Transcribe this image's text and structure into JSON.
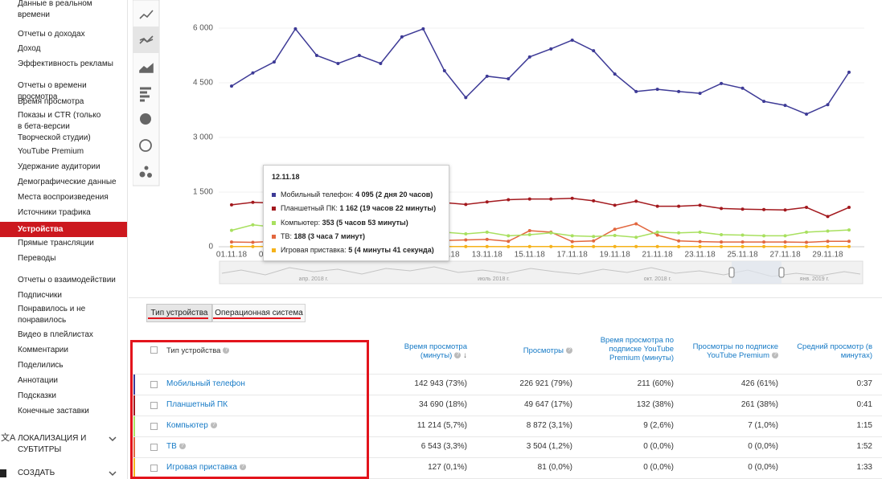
{
  "sidebar": {
    "items": [
      "Данные в реальном времени",
      "Отчеты о доходах",
      "Доход",
      "Эффективность рекламы",
      "Отчеты о времени просмотра",
      "Время просмотра",
      "Показы и CTR (только в бета-версии Творческой студии)",
      "YouTube Premium",
      "Удержание аудитории",
      "Демографические данные",
      "Места воспроизведения",
      "Источники трафика",
      "Устройства",
      "Прямые трансляции",
      "Переводы",
      "Отчеты о взаимодействии",
      "Подписчики",
      "Понравилось и не понравилось",
      "Видео в плейлистах",
      "Комментарии",
      "Поделились",
      "Аннотации",
      "Подсказки",
      "Конечные заставки",
      "ЛОКАЛИЗАЦИЯ И СУБТИТРЫ",
      "СОЗДАТЬ"
    ]
  },
  "chart_data": {
    "type": "line",
    "categories": [
      "01.11.18",
      null,
      "03.11.18",
      null,
      "05.11.18",
      null,
      "07.11.18",
      null,
      "09.11.18",
      null,
      "11.11.18",
      null,
      "13.11.18",
      null,
      "15.11.18",
      null,
      "17.11.18",
      null,
      "19.11.18",
      null,
      "21.11.18",
      null,
      "23.11.18",
      null,
      "25.11.18",
      null,
      "27.11.18",
      null,
      "29.11.18",
      null
    ],
    "series": [
      {
        "name": "Мобильный телефон",
        "color": "#3d3a96",
        "values": [
          4410,
          4770,
          5070,
          5980,
          5250,
          5030,
          5250,
          5030,
          5760,
          5980,
          4830,
          4095,
          4680,
          4610,
          5210,
          5430,
          5670,
          5380,
          4740,
          4260,
          4320,
          4260,
          4210,
          4480,
          4350,
          3990,
          3880,
          3640,
          3900,
          4790
        ]
      },
      {
        "name": "Планшетный ПК",
        "color": "#a3191e",
        "values": [
          1150,
          1220,
          1200,
          1180,
          1190,
          1200,
          1190,
          1200,
          1210,
          1200,
          1210,
          1162,
          1230,
          1290,
          1310,
          1310,
          1330,
          1260,
          1140,
          1250,
          1110,
          1110,
          1140,
          1050,
          1030,
          1020,
          1010,
          1080,
          830,
          1080
        ]
      },
      {
        "name": "Компьютер",
        "color": "#a8e05f",
        "values": [
          450,
          600,
          540,
          470,
          420,
          430,
          420,
          430,
          420,
          420,
          400,
          353,
          400,
          300,
          330,
          380,
          300,
          280,
          310,
          260,
          400,
          380,
          400,
          330,
          320,
          300,
          300,
          400,
          430,
          460
        ]
      },
      {
        "name": "ТВ",
        "color": "#e2673f",
        "values": [
          130,
          120,
          150,
          160,
          150,
          140,
          150,
          140,
          150,
          150,
          170,
          188,
          200,
          150,
          440,
          400,
          140,
          160,
          480,
          630,
          320,
          160,
          140,
          130,
          130,
          130,
          130,
          120,
          150,
          150
        ]
      },
      {
        "name": "Игровая приставка",
        "color": "#f5b21a",
        "values": [
          5,
          5,
          6,
          5,
          5,
          5,
          4,
          5,
          6,
          5,
          5,
          5,
          5,
          4,
          5,
          5,
          6,
          5,
          5,
          5,
          5,
          4,
          5,
          5,
          5,
          5,
          4,
          5,
          5,
          5
        ]
      }
    ],
    "ylim": [
      0,
      6000
    ],
    "yticks": [
      0,
      {
        "value": 1500,
        "label": "1 500"
      },
      {
        "value": 3000,
        "label": "3 000"
      },
      {
        "value": 4500,
        "label": "4 500"
      },
      {
        "value": 6000,
        "label": "6 000"
      }
    ],
    "grid": true,
    "tooltip": {
      "title": "12.11.18",
      "items": [
        {
          "label": "Мобильный телефон:",
          "value": "4 095 (2 дня 20 часов)"
        },
        {
          "label": "Планшетный ПК:",
          "value": "1 162 (19 часов 22 минуты)"
        },
        {
          "label": "Компьютер:",
          "value": "353 (5 часов 53 минуты)"
        },
        {
          "label": "ТВ:",
          "value": "188 (3 часа 7 минут)"
        },
        {
          "label": "Игровая приставка:",
          "value": "5 (4 минуты 41 секунда)"
        }
      ]
    },
    "range_labels": [
      "апр. 2018 г.",
      "июль 2018 г.",
      "окт. 2018 г.",
      "янв. 2019 г."
    ]
  },
  "tabs": [
    "Тип устройства",
    "Операционная система"
  ],
  "table": {
    "headers": [
      "Тип устройства",
      "Время просмотра (минуты)",
      "Просмотры",
      "Время просмотра по подписке YouTube Premium (минуты)",
      "Просмотры по подписке YouTube Premium",
      "Средний просмотр (в минутах)"
    ],
    "rows": [
      [
        "Мобильный телефон",
        "142 943 (73%)",
        "226 921 (79%)",
        "211 (60%)",
        "426 (61%)",
        "0:37"
      ],
      [
        "Планшетный ПК",
        "34 690 (18%)",
        "49 647 (17%)",
        "132 (38%)",
        "261 (38%)",
        "0:41"
      ],
      [
        "Компьютер",
        "11 214 (5,7%)",
        "8 872 (3,1%)",
        "9 (2,6%)",
        "7 (1,0%)",
        "1:15"
      ],
      [
        "ТВ",
        "6 543 (3,3%)",
        "3 504 (1,2%)",
        "0 (0,0%)",
        "0 (0,0%)",
        "1:52"
      ],
      [
        "Игровая приставка",
        "127 (0,1%)",
        "81 (0,0%)",
        "0 (0,0%)",
        "0 (0,0%)",
        "1:33"
      ]
    ]
  }
}
